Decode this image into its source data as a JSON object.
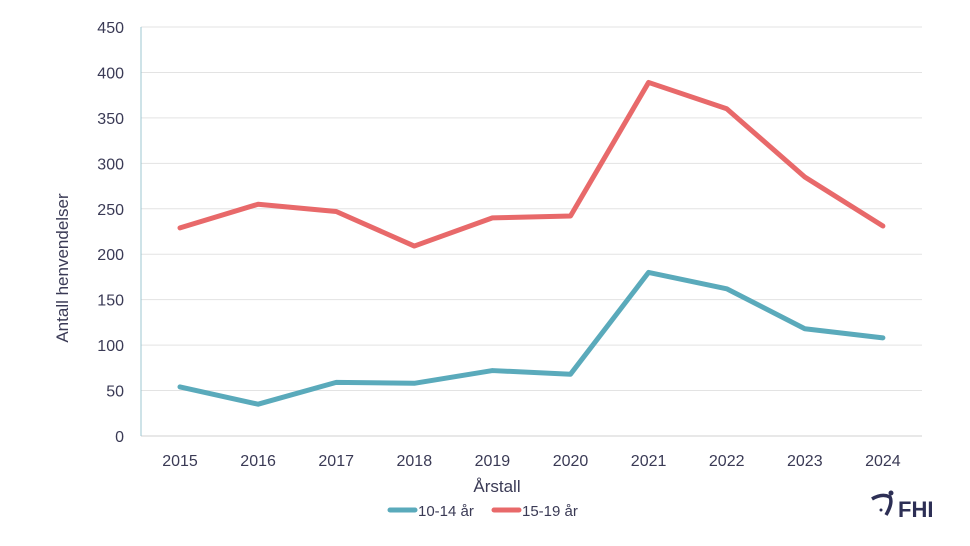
{
  "chart_data": {
    "type": "line",
    "xlabel": "Årstall",
    "ylabel": "Antall henvendelser",
    "ylim": [
      0,
      450
    ],
    "yticks": [
      0,
      50,
      100,
      150,
      200,
      250,
      300,
      350,
      400,
      450
    ],
    "categories": [
      "2015",
      "2016",
      "2017",
      "2018",
      "2019",
      "2020",
      "2021",
      "2022",
      "2023",
      "2024"
    ],
    "grid": true,
    "legend_position": "bottom",
    "series": [
      {
        "name": "10-14 år",
        "color": "#5aaabb",
        "values": [
          54,
          35,
          59,
          58,
          72,
          68,
          180,
          162,
          118,
          108
        ]
      },
      {
        "name": "15-19 år",
        "color": "#e8696a",
        "values": [
          229,
          255,
          247,
          209,
          240,
          242,
          389,
          360,
          285,
          231
        ]
      }
    ]
  },
  "logo": {
    "text": "FHI"
  }
}
